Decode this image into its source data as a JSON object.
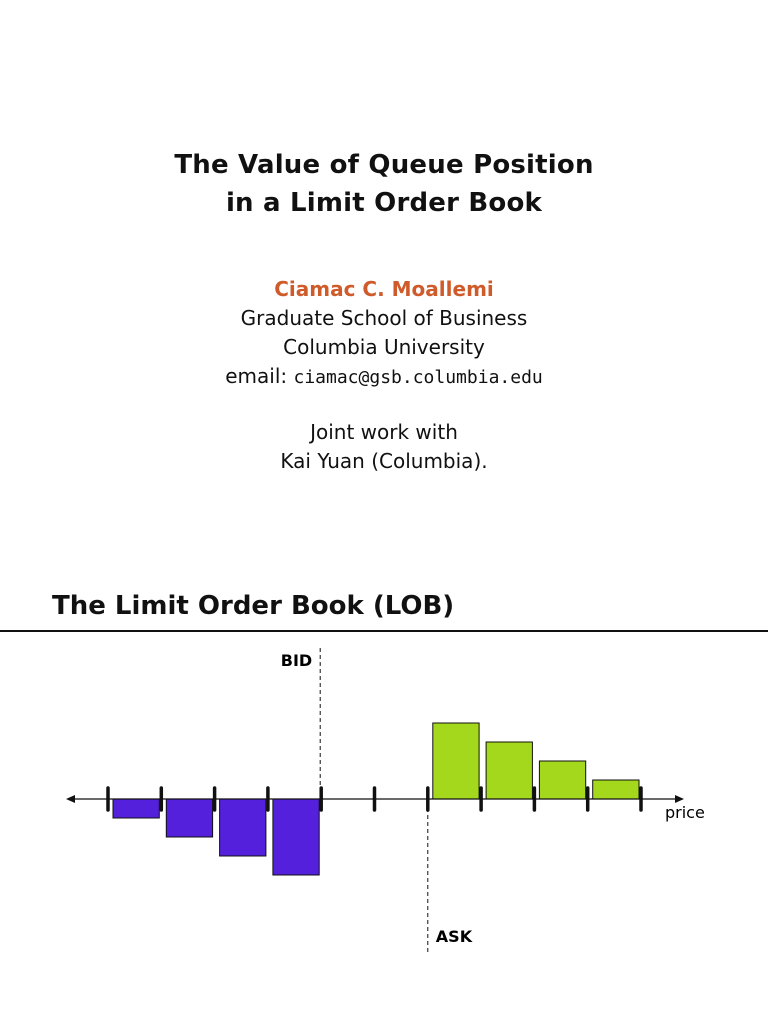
{
  "slide1": {
    "title_line1": "The Value of Queue Position",
    "title_line2": "in a Limit Order Book",
    "author": "Ciamac C. Moallemi",
    "affiliation1": "Graduate School of Business",
    "affiliation2": "Columbia University",
    "email_label": "email:",
    "email": "ciamac@gsb.columbia.edu",
    "joint_line1": "Joint work with",
    "joint_line2": "Kai Yuan (Columbia)."
  },
  "slide2": {
    "title": "The Limit Order Book (LOB)"
  },
  "chart_data": {
    "type": "bar",
    "x_axis_label": "price",
    "bid_label": "BID",
    "ask_label": "ASK",
    "tick_count": 11,
    "bid_values": [
      -1,
      -2,
      -3,
      -4
    ],
    "ask_values": [
      4,
      3,
      2,
      1
    ],
    "colors": {
      "bid": "#5420dc",
      "ask": "#a4d81c",
      "author": "#cf5b2b"
    }
  }
}
